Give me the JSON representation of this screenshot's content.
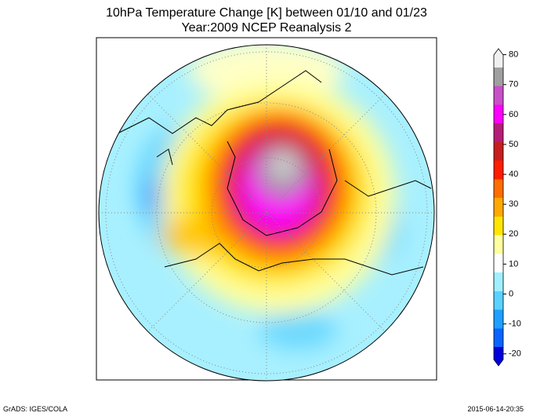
{
  "title": [
    "10hPa Temperature Change [K] between 01/10 and 01/23",
    "Year:2009  NCEP Reanalysis 2"
  ],
  "colorbar": {
    "ticks": [
      80,
      70,
      60,
      50,
      40,
      30,
      20,
      10,
      0,
      -10,
      -20
    ],
    "range": [
      -24,
      82
    ],
    "colors": [
      "#0000dd",
      "#0a64ff",
      "#1ea0ff",
      "#5ad2ff",
      "#a0f0ff",
      "#ffffff",
      "#ffffa0",
      "#ffe600",
      "#ffaa00",
      "#ff6e00",
      "#ff1e00",
      "#c81e1e",
      "#b41e78",
      "#ff00ff",
      "#c850c8",
      "#a0a0a0",
      "#f0f0f0"
    ]
  },
  "footer": {
    "left": "GrADS: IGES/COLA",
    "right": "2015-06-14-20:35"
  }
}
